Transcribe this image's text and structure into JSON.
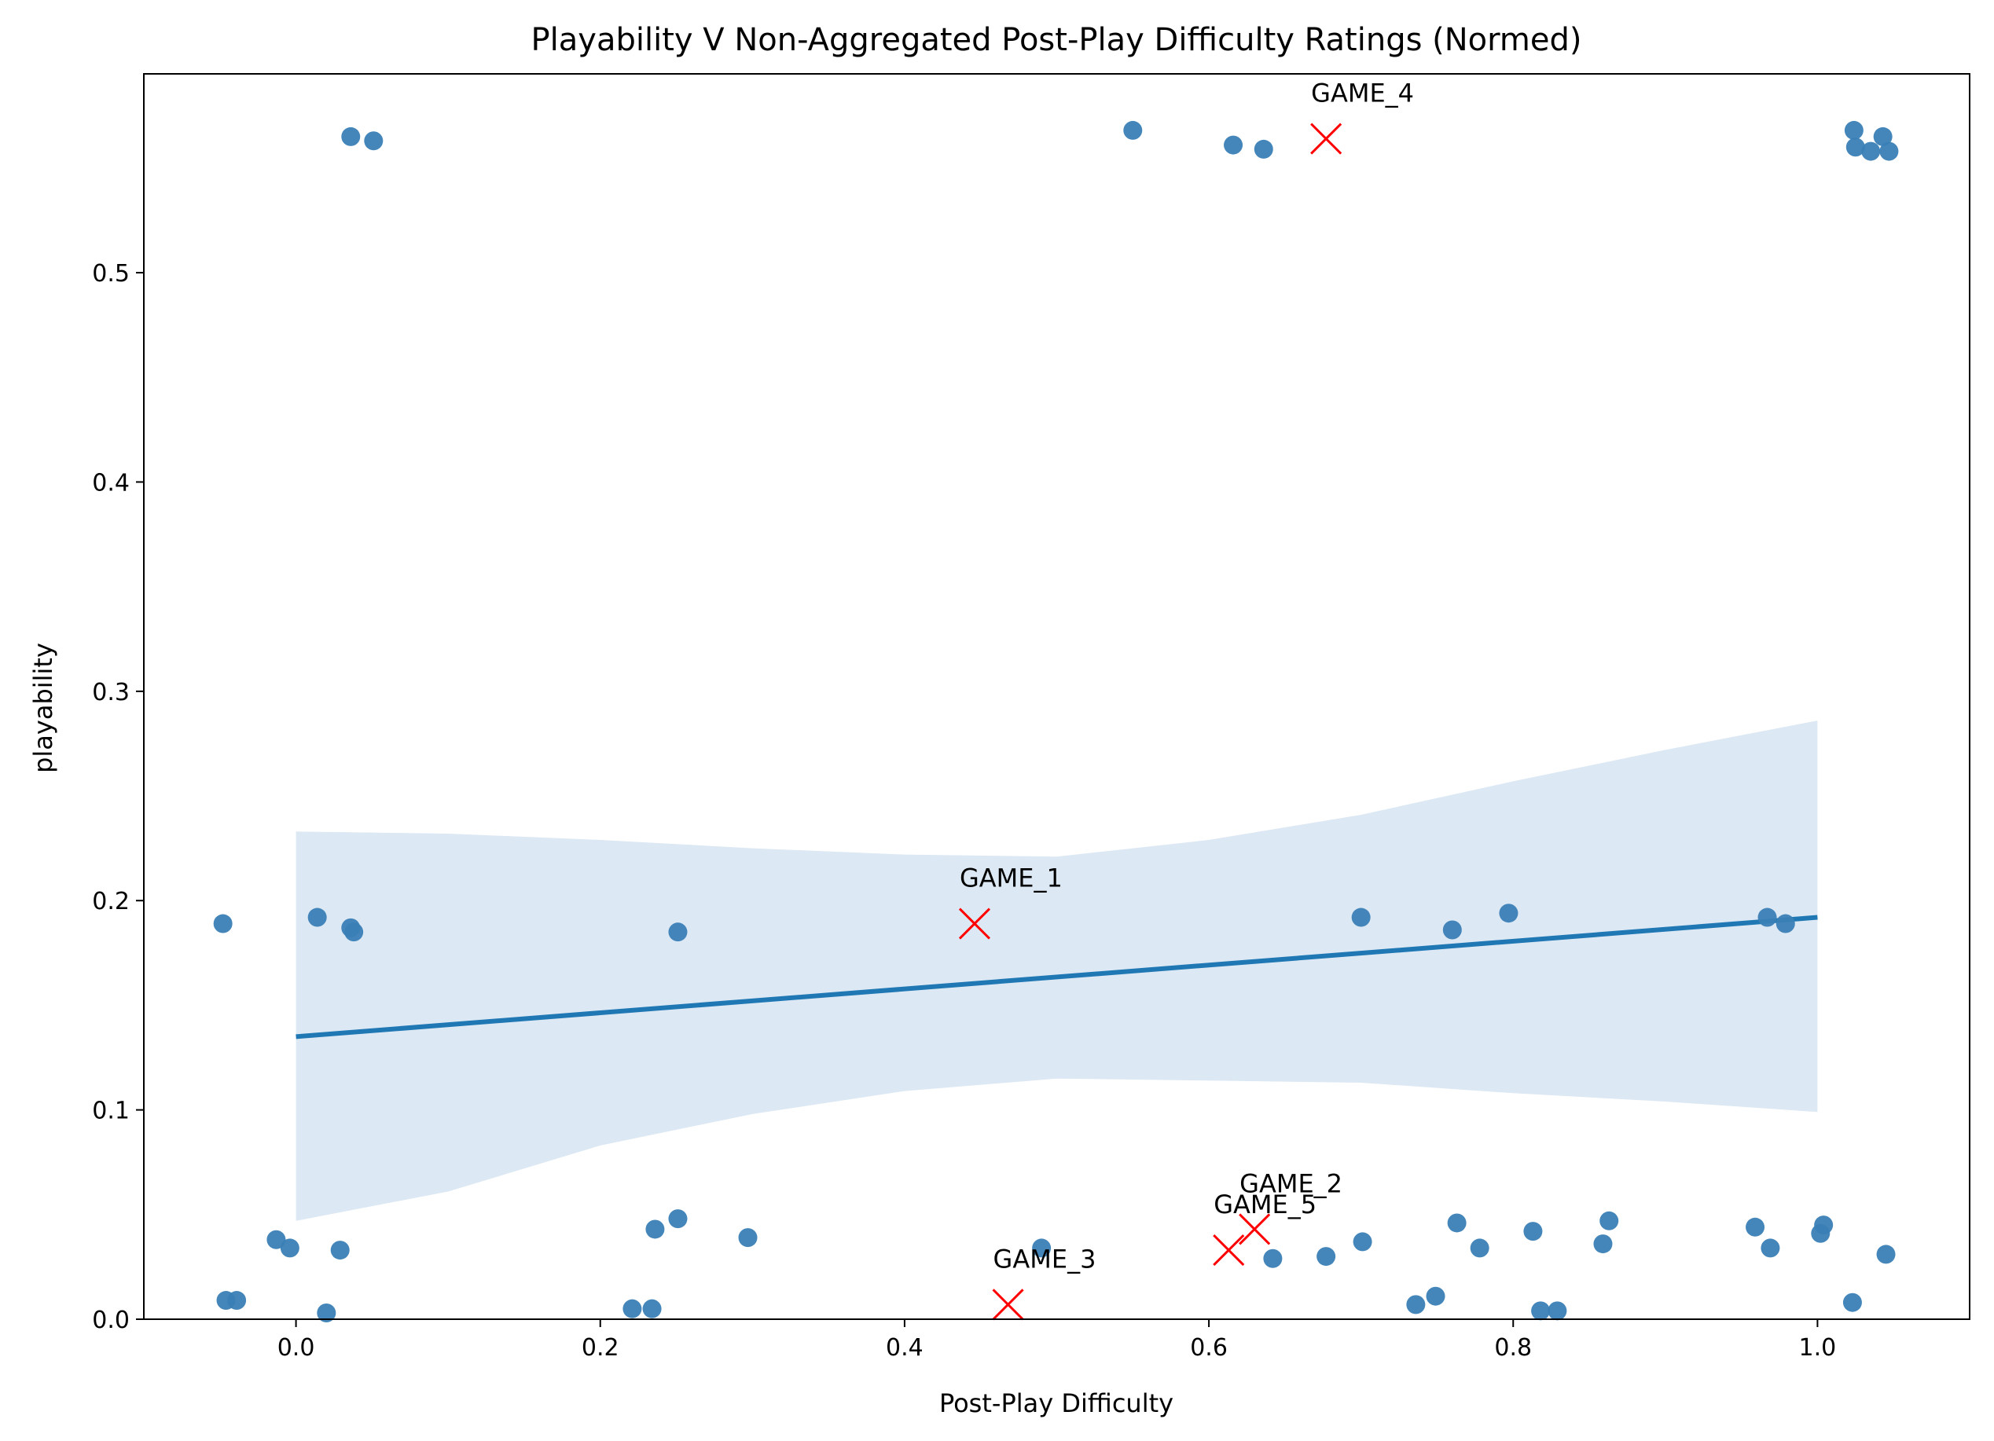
{
  "chart_data": {
    "type": "scatter",
    "title": "Playability V Non-Aggregated Post-Play Difficulty Ratings (Normed)",
    "xlabel": "Post-Play Difficulty",
    "ylabel": "playability",
    "xlim": [
      -0.1,
      1.1
    ],
    "ylim": [
      0.0,
      0.595
    ],
    "xticks": [
      0.0,
      0.2,
      0.4,
      0.6,
      0.8,
      1.0
    ],
    "xtick_labels": [
      "0.0",
      "0.2",
      "0.4",
      "0.6",
      "0.8",
      "1.0"
    ],
    "yticks": [
      0.0,
      0.1,
      0.2,
      0.3,
      0.4,
      0.5
    ],
    "ytick_labels": [
      "0.0",
      "0.1",
      "0.2",
      "0.3",
      "0.4",
      "0.5"
    ],
    "grid": false,
    "colors": {
      "points": "#3a7fb6",
      "regression_line": "#1f77b4",
      "confidence_band": "#dce8f3",
      "games": "#ff0000"
    },
    "points": [
      {
        "x": 0.036,
        "y": 0.565
      },
      {
        "x": 0.051,
        "y": 0.563
      },
      {
        "x": 0.55,
        "y": 0.568
      },
      {
        "x": 0.616,
        "y": 0.561
      },
      {
        "x": 0.636,
        "y": 0.559
      },
      {
        "x": 1.024,
        "y": 0.568
      },
      {
        "x": 1.025,
        "y": 0.56
      },
      {
        "x": 1.035,
        "y": 0.558
      },
      {
        "x": 1.043,
        "y": 0.565
      },
      {
        "x": 1.047,
        "y": 0.558
      },
      {
        "x": -0.048,
        "y": 0.189
      },
      {
        "x": 0.014,
        "y": 0.192
      },
      {
        "x": 0.036,
        "y": 0.187
      },
      {
        "x": 0.038,
        "y": 0.185
      },
      {
        "x": 0.251,
        "y": 0.185
      },
      {
        "x": 0.7,
        "y": 0.192
      },
      {
        "x": 0.76,
        "y": 0.186
      },
      {
        "x": 0.797,
        "y": 0.194
      },
      {
        "x": 0.967,
        "y": 0.192
      },
      {
        "x": 0.979,
        "y": 0.189
      },
      {
        "x": -0.013,
        "y": 0.038
      },
      {
        "x": -0.004,
        "y": 0.034
      },
      {
        "x": 0.029,
        "y": 0.033
      },
      {
        "x": 0.236,
        "y": 0.043
      },
      {
        "x": 0.251,
        "y": 0.048
      },
      {
        "x": 0.297,
        "y": 0.039
      },
      {
        "x": 0.49,
        "y": 0.034
      },
      {
        "x": 0.642,
        "y": 0.029
      },
      {
        "x": 0.677,
        "y": 0.03
      },
      {
        "x": 0.701,
        "y": 0.037
      },
      {
        "x": 0.763,
        "y": 0.046
      },
      {
        "x": 0.778,
        "y": 0.034
      },
      {
        "x": 0.813,
        "y": 0.042
      },
      {
        "x": 0.859,
        "y": 0.036
      },
      {
        "x": 0.863,
        "y": 0.047
      },
      {
        "x": 0.959,
        "y": 0.044
      },
      {
        "x": 0.969,
        "y": 0.034
      },
      {
        "x": 1.002,
        "y": 0.041
      },
      {
        "x": 1.004,
        "y": 0.045
      },
      {
        "x": 1.045,
        "y": 0.031
      },
      {
        "x": -0.046,
        "y": 0.009
      },
      {
        "x": -0.039,
        "y": 0.009
      },
      {
        "x": 0.02,
        "y": 0.003
      },
      {
        "x": 0.221,
        "y": 0.005
      },
      {
        "x": 0.234,
        "y": 0.005
      },
      {
        "x": 0.736,
        "y": 0.007
      },
      {
        "x": 0.749,
        "y": 0.011
      },
      {
        "x": 0.818,
        "y": 0.004
      },
      {
        "x": 0.829,
        "y": 0.004
      },
      {
        "x": 1.023,
        "y": 0.008
      }
    ],
    "regression": {
      "x": [
        0.0,
        1.0
      ],
      "y": [
        0.135,
        0.192
      ]
    },
    "confidence_band": {
      "x": [
        0.0,
        0.1,
        0.2,
        0.3,
        0.4,
        0.5,
        0.6,
        0.7,
        0.8,
        0.9,
        1.0
      ],
      "upper": [
        0.233,
        0.232,
        0.229,
        0.225,
        0.222,
        0.221,
        0.229,
        0.241,
        0.257,
        0.272,
        0.286
      ],
      "lower": [
        0.047,
        0.061,
        0.083,
        0.098,
        0.109,
        0.115,
        0.114,
        0.113,
        0.108,
        0.104,
        0.099
      ]
    },
    "games": [
      {
        "label": "GAME_1",
        "x": 0.446,
        "y": 0.189
      },
      {
        "label": "GAME_2",
        "x": 0.63,
        "y": 0.043
      },
      {
        "label": "GAME_3",
        "x": 0.468,
        "y": 0.007
      },
      {
        "label": "GAME_4",
        "x": 0.677,
        "y": 0.564
      },
      {
        "label": "GAME_5",
        "x": 0.613,
        "y": 0.033
      }
    ]
  }
}
